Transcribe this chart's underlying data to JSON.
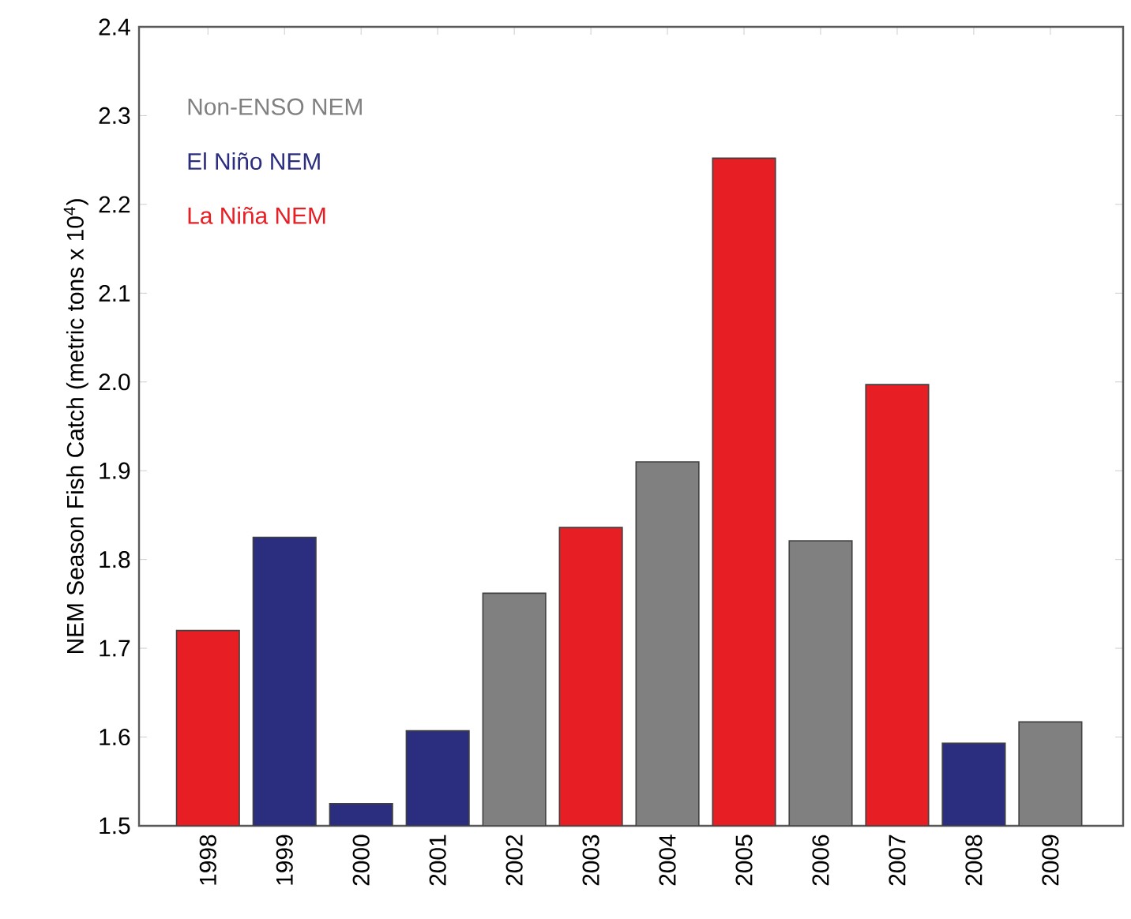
{
  "chart_data": {
    "type": "bar",
    "ylabel": "NEM Season Fish Catch (metric tons x 10$^{4}$)",
    "categories": [
      "1998",
      "1999",
      "2000",
      "2001",
      "2002",
      "2003",
      "2004",
      "2005",
      "2006",
      "2007",
      "2008",
      "2009"
    ],
    "series": [
      {
        "name": "Non-ENSO NEM",
        "color": "#808080",
        "values": [
          null,
          null,
          null,
          null,
          1.762,
          null,
          1.91,
          null,
          1.821,
          null,
          null,
          1.617
        ]
      },
      {
        "name": "El Niño NEM",
        "color": "#2b2d7e",
        "values": [
          null,
          1.825,
          1.525,
          1.607,
          null,
          null,
          null,
          null,
          null,
          null,
          1.593,
          null
        ]
      },
      {
        "name": "La Niña NEM",
        "color": "#e81e25",
        "values": [
          1.72,
          null,
          null,
          null,
          null,
          1.836,
          null,
          2.252,
          null,
          1.997,
          null,
          null
        ]
      }
    ],
    "ylim": [
      1.5,
      2.4
    ],
    "yticks": [
      1.5,
      1.6,
      1.7,
      1.8,
      1.9,
      {
        "value": 2,
        "label": "2.0"
      },
      2.1,
      2.2,
      2.3,
      2.4
    ],
    "legend": "top left"
  }
}
